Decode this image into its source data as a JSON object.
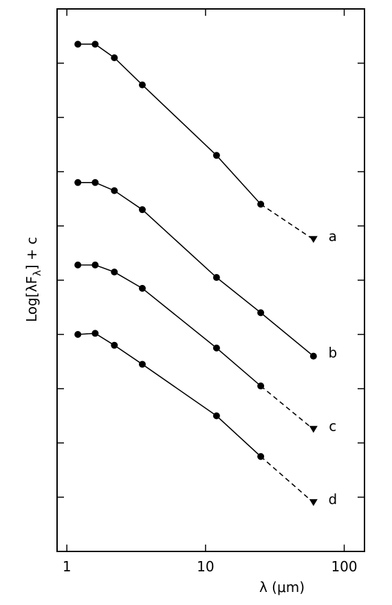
{
  "chart_data": {
    "type": "line",
    "xlabel": "λ (μm)",
    "ylabel": "Log[λF_λ] + c",
    "x_scale": "log",
    "xlim": [
      0.85,
      140
    ],
    "ylim": [
      0,
      10
    ],
    "x_ticks": [
      1,
      10,
      100
    ],
    "x_tick_labels": [
      "1",
      "10",
      "100"
    ],
    "y_ticks": [
      1,
      2,
      3,
      4,
      5,
      6,
      7,
      8,
      9
    ],
    "grid": false,
    "series": [
      {
        "name": "a",
        "x": [
          1.2,
          1.6,
          2.2,
          3.5,
          12,
          25
        ],
        "y": [
          9.35,
          9.35,
          9.1,
          8.6,
          7.3,
          6.4
        ],
        "upper_limit": {
          "x": 60,
          "y": 5.75
        }
      },
      {
        "name": "b",
        "x": [
          1.2,
          1.6,
          2.2,
          3.5,
          12,
          25,
          60
        ],
        "y": [
          6.8,
          6.8,
          6.65,
          6.3,
          5.05,
          4.4,
          3.6
        ]
      },
      {
        "name": "c",
        "x": [
          1.2,
          1.6,
          2.2,
          3.5,
          12,
          25
        ],
        "y": [
          5.28,
          5.28,
          5.15,
          4.85,
          3.75,
          3.05
        ],
        "upper_limit": {
          "x": 60,
          "y": 2.25
        }
      },
      {
        "name": "d",
        "x": [
          1.2,
          1.6,
          2.2,
          3.5,
          12,
          25
        ],
        "y": [
          4.0,
          4.02,
          3.8,
          3.45,
          2.5,
          1.75
        ],
        "upper_limit": {
          "x": 60,
          "y": 0.9
        }
      }
    ]
  }
}
